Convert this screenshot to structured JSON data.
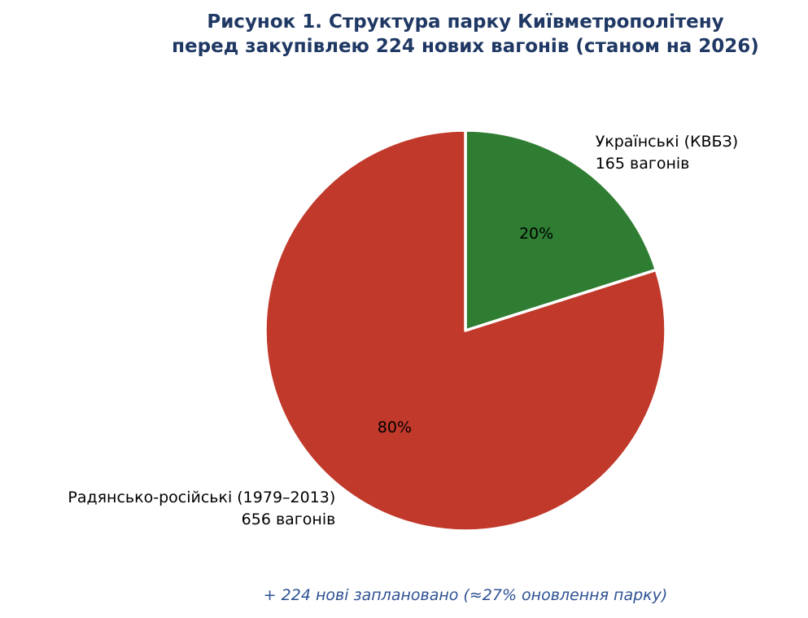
{
  "chart_data": {
    "type": "pie",
    "title": "Рисунок 1. Структура парку Київметрополітену",
    "subtitle": "перед закупівлею 224 нових вагонів (станом на 2026)",
    "slices": [
      {
        "label": "Українські (КВБЗ)",
        "value_label": "165 вагонів",
        "value": 165,
        "percent_label": "20%",
        "color": "#2e7d32"
      },
      {
        "label": "Радянсько-російські (1979–2013)",
        "value_label": "656 вагонів",
        "value": 656,
        "percent_label": "80%",
        "color": "#c0392b"
      }
    ],
    "start": "12 o'clock",
    "direction": "clockwise",
    "legend": "none",
    "annotation": "+ 224 нові заплановано (≈27% оновлення парку)"
  },
  "colors": {
    "title": "#1f3864",
    "annotation": "#2e5294",
    "slice_edge": "#ffffff"
  }
}
